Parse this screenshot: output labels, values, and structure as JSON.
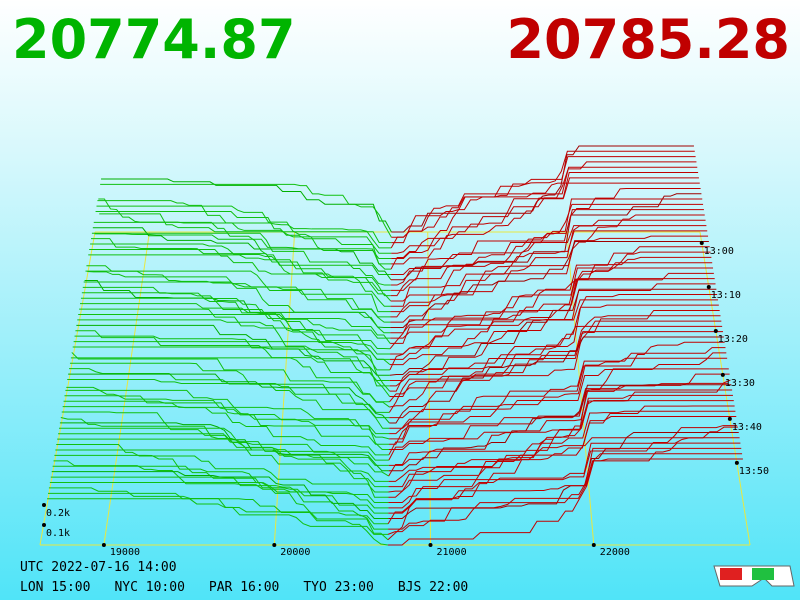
{
  "header": {
    "bid": "20774.87",
    "ask": "20785.28"
  },
  "price_axis": [
    "19000",
    "20000",
    "21000",
    "22000"
  ],
  "depth_axis": [
    "0.2k",
    "0.1k"
  ],
  "time_axis": [
    "13:00",
    "13:10",
    "13:20",
    "13:30",
    "13:40",
    "13:50"
  ],
  "clock": {
    "utc": "UTC 2022-07-16 14:00",
    "cities": [
      "LON 15:00",
      "NYC 10:00",
      "PAR 16:00",
      "TYO 23:00",
      "BJS 22:00"
    ]
  }
}
